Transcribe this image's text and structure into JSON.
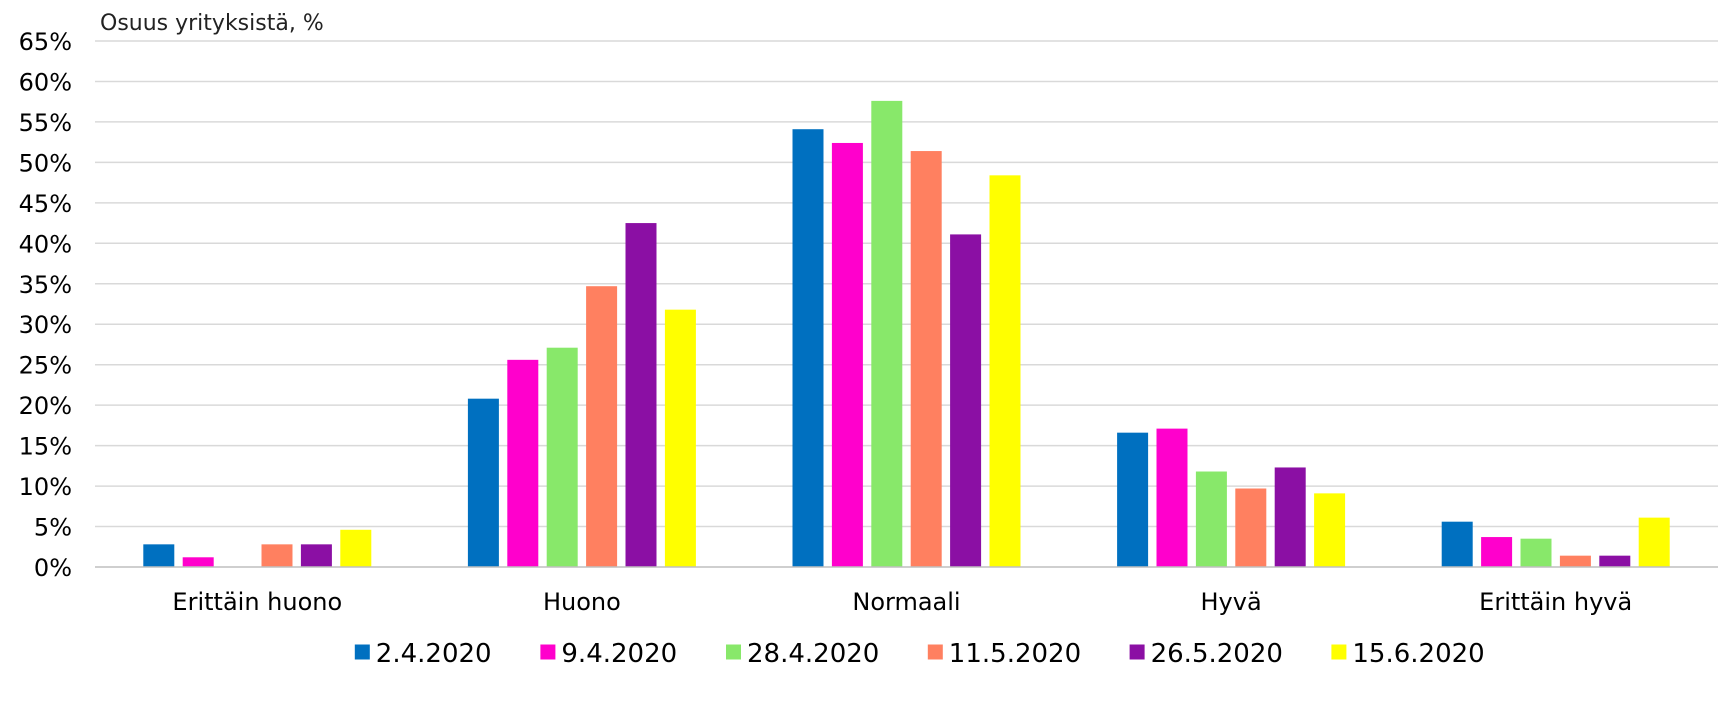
{
  "chart_data": {
    "type": "bar",
    "title": "",
    "ylabel": "Osuus yrityksistä, %",
    "xlabel": "",
    "ylim": [
      0,
      65
    ],
    "ytick_step": 5,
    "ytick_suffix": "%",
    "grid": true,
    "legend_position": "bottom",
    "categories": [
      "Erittäin huono",
      "Huono",
      "Normaali",
      "Hyvä",
      "Erittäin hyvä"
    ],
    "series": [
      {
        "name": "2.4.2020",
        "color": "#0070C0",
        "values": [
          2.8,
          20.8,
          54.1,
          16.6,
          5.6
        ]
      },
      {
        "name": "9.4.2020",
        "color": "#FF00CC",
        "values": [
          1.2,
          25.6,
          52.4,
          17.1,
          3.7
        ]
      },
      {
        "name": "28.4.2020",
        "color": "#88E86A",
        "values": [
          0.0,
          27.1,
          57.6,
          11.8,
          3.5
        ]
      },
      {
        "name": "11.5.2020",
        "color": "#FF8060",
        "values": [
          2.8,
          34.7,
          51.4,
          9.7,
          1.4
        ]
      },
      {
        "name": "26.5.2020",
        "color": "#8B0FA4",
        "values": [
          2.8,
          42.5,
          41.1,
          12.3,
          1.4
        ]
      },
      {
        "name": "15.6.2020",
        "color": "#FFFF00",
        "values": [
          4.6,
          31.8,
          48.4,
          9.1,
          6.1
        ]
      }
    ]
  }
}
